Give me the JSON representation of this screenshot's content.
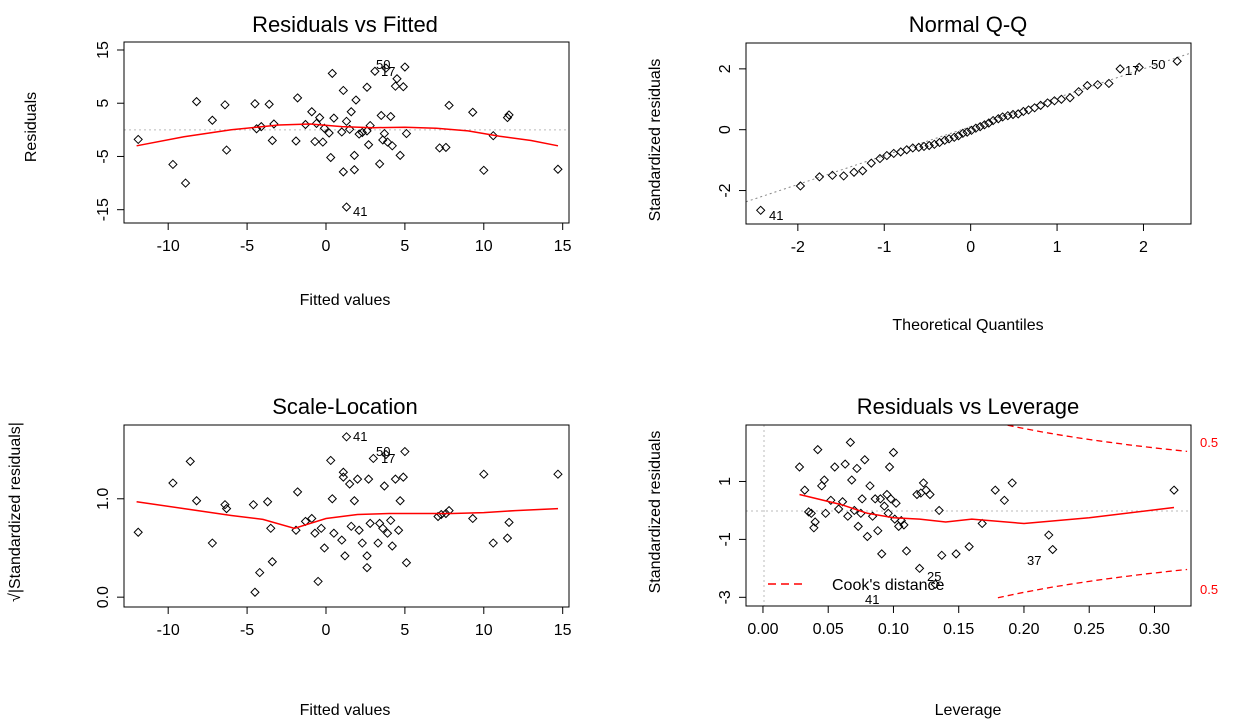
{
  "chart_data": [
    {
      "type": "scatter",
      "title": "Residuals vs Fitted",
      "xlabel": "Fitted values",
      "ylabel": "Residuals",
      "xlim": [
        -12.8,
        15.4
      ],
      "ylim": [
        -17.5,
        16.5
      ],
      "x_ticks": [
        "-10",
        "-5",
        "0",
        "5",
        "10",
        "15"
      ],
      "y_ticks": [
        "-15",
        "-5",
        "5",
        "15"
      ],
      "reference_line": 0,
      "smooth_color": "#ff0000",
      "labels": [
        "50",
        "17",
        "41"
      ],
      "points": [
        [
          -11.9,
          -1.8
        ],
        [
          -9.7,
          -6.5
        ],
        [
          -8.9,
          -10
        ],
        [
          -8.2,
          5.3
        ],
        [
          -7.2,
          1.8
        ],
        [
          -6.4,
          4.7
        ],
        [
          -6.3,
          -3.8
        ],
        [
          -4.5,
          4.9
        ],
        [
          -4.4,
          0.2
        ],
        [
          -4.1,
          0.6
        ],
        [
          -3.6,
          4.8
        ],
        [
          -3.4,
          -2
        ],
        [
          -3.3,
          1.1
        ],
        [
          -1.9,
          -2.1
        ],
        [
          -1.8,
          6
        ],
        [
          -1.3,
          1
        ],
        [
          -0.9,
          3.4
        ],
        [
          -0.7,
          -2.2
        ],
        [
          -0.6,
          1.2
        ],
        [
          -0.4,
          2.3
        ],
        [
          -0.2,
          -2.3
        ],
        [
          -0.1,
          0.3
        ],
        [
          0.2,
          -0.6
        ],
        [
          0.3,
          -5.2
        ],
        [
          0.4,
          10.6
        ],
        [
          0.5,
          2.2
        ],
        [
          1,
          -0.4
        ],
        [
          1.1,
          -7.9
        ],
        [
          1.1,
          7.4
        ],
        [
          1.3,
          1.6
        ],
        [
          1.3,
          -14.5
        ],
        [
          1.5,
          0.1
        ],
        [
          1.6,
          3.4
        ],
        [
          1.8,
          -7.5
        ],
        [
          1.8,
          -4.8
        ],
        [
          1.9,
          5.6
        ],
        [
          2.1,
          -0.8
        ],
        [
          2.3,
          -0.5
        ],
        [
          2.6,
          -0.2
        ],
        [
          2.6,
          8
        ],
        [
          2.7,
          -2.8
        ],
        [
          2.8,
          0.8
        ],
        [
          3.1,
          11
        ],
        [
          3.4,
          -6.4
        ],
        [
          3.5,
          2.7
        ],
        [
          3.6,
          -1.9
        ],
        [
          3.7,
          -0.7
        ],
        [
          3.8,
          11.6
        ],
        [
          3.9,
          -2.3
        ],
        [
          4.1,
          2.5
        ],
        [
          4.2,
          -3
        ],
        [
          4.4,
          8.2
        ],
        [
          4.5,
          9.6
        ],
        [
          4.7,
          -4.8
        ],
        [
          4.9,
          8.1
        ],
        [
          5,
          11.8
        ],
        [
          5.1,
          -0.7
        ],
        [
          7.2,
          -3.4
        ],
        [
          7.6,
          -3.3
        ],
        [
          7.8,
          4.6
        ],
        [
          9.3,
          3.3
        ],
        [
          10,
          -7.6
        ],
        [
          10.6,
          -1.1
        ],
        [
          11.5,
          2.3
        ],
        [
          11.6,
          2.8
        ],
        [
          14.7,
          -7.4
        ]
      ],
      "smooth": [
        [
          -12,
          -3
        ],
        [
          -9,
          -1.3
        ],
        [
          -6,
          0
        ],
        [
          -3,
          0.9
        ],
        [
          -1,
          1.1
        ],
        [
          1,
          0.6
        ],
        [
          3,
          0.4
        ],
        [
          5,
          0.5
        ],
        [
          7,
          0.3
        ],
        [
          9,
          -0.2
        ],
        [
          11,
          -1.2
        ],
        [
          13,
          -2
        ],
        [
          14.7,
          -3
        ]
      ]
    },
    {
      "type": "scatter",
      "title": "Normal Q-Q",
      "xlabel": "Theoretical Quantiles",
      "ylabel": "Standardized residuals",
      "xlim": [
        -2.6,
        2.55
      ],
      "ylim": [
        -3.1,
        2.85
      ],
      "x_ticks": [
        "-2",
        "-1",
        "0",
        "1",
        "2"
      ],
      "y_ticks": [
        "-2",
        "0",
        "2"
      ],
      "reference_line": [
        0.1,
        0.95
      ],
      "labels": [
        "41",
        "17",
        "50"
      ],
      "points": [
        [
          -2.43,
          -2.65
        ],
        [
          -1.97,
          -1.85
        ],
        [
          -1.75,
          -1.55
        ],
        [
          -1.6,
          -1.5
        ],
        [
          -1.47,
          -1.52
        ],
        [
          -1.35,
          -1.4
        ],
        [
          -1.25,
          -1.35
        ],
        [
          -1.15,
          -1.1
        ],
        [
          -1.05,
          -0.95
        ],
        [
          -0.97,
          -0.85
        ],
        [
          -0.89,
          -0.78
        ],
        [
          -0.81,
          -0.73
        ],
        [
          -0.74,
          -0.66
        ],
        [
          -0.67,
          -0.6
        ],
        [
          -0.6,
          -0.58
        ],
        [
          -0.54,
          -0.55
        ],
        [
          -0.48,
          -0.52
        ],
        [
          -0.42,
          -0.48
        ],
        [
          -0.36,
          -0.42
        ],
        [
          -0.3,
          -0.35
        ],
        [
          -0.25,
          -0.3
        ],
        [
          -0.19,
          -0.25
        ],
        [
          -0.14,
          -0.2
        ],
        [
          -0.09,
          -0.12
        ],
        [
          -0.04,
          -0.08
        ],
        [
          0.01,
          -0.02
        ],
        [
          0.06,
          0.05
        ],
        [
          0.11,
          0.1
        ],
        [
          0.16,
          0.16
        ],
        [
          0.21,
          0.22
        ],
        [
          0.26,
          0.3
        ],
        [
          0.32,
          0.36
        ],
        [
          0.37,
          0.42
        ],
        [
          0.43,
          0.46
        ],
        [
          0.49,
          0.5
        ],
        [
          0.55,
          0.52
        ],
        [
          0.61,
          0.6
        ],
        [
          0.67,
          0.65
        ],
        [
          0.74,
          0.72
        ],
        [
          0.81,
          0.8
        ],
        [
          0.89,
          0.88
        ],
        [
          0.97,
          0.95
        ],
        [
          1.05,
          1.0
        ],
        [
          1.15,
          1.05
        ],
        [
          1.25,
          1.25
        ],
        [
          1.35,
          1.45
        ],
        [
          1.47,
          1.48
        ],
        [
          1.6,
          1.52
        ],
        [
          1.73,
          2.0
        ],
        [
          1.95,
          2.05
        ],
        [
          2.39,
          2.25
        ]
      ]
    },
    {
      "type": "scatter",
      "title": "Scale-Location",
      "xlabel": "Fitted values",
      "ylabel": "√|Standardized residuals|",
      "xlim": [
        -12.8,
        15.4
      ],
      "ylim": [
        -0.1,
        1.75
      ],
      "x_ticks": [
        "-10",
        "-5",
        "0",
        "5",
        "10",
        "15"
      ],
      "y_ticks": [
        "0.0",
        "1.0"
      ],
      "smooth_color": "#ff0000",
      "labels": [
        "41",
        "50",
        "17"
      ],
      "points": [
        [
          -11.9,
          0.66
        ],
        [
          -9.7,
          1.16
        ],
        [
          -8.6,
          1.38
        ],
        [
          -8.2,
          0.98
        ],
        [
          -7.2,
          0.55
        ],
        [
          -6.4,
          0.94
        ],
        [
          -6.3,
          0.9
        ],
        [
          -4.6,
          0.94
        ],
        [
          -4.5,
          0.05
        ],
        [
          -4.2,
          0.25
        ],
        [
          -3.7,
          0.97
        ],
        [
          -3.5,
          0.7
        ],
        [
          -3.4,
          0.36
        ],
        [
          -1.9,
          0.68
        ],
        [
          -1.8,
          1.07
        ],
        [
          -1.3,
          0.77
        ],
        [
          -0.9,
          0.8
        ],
        [
          -0.7,
          0.65
        ],
        [
          -0.5,
          0.16
        ],
        [
          -0.3,
          0.7
        ],
        [
          -0.1,
          0.5
        ],
        [
          0.3,
          1.39
        ],
        [
          0.4,
          1.0
        ],
        [
          0.5,
          0.65
        ],
        [
          1.0,
          0.58
        ],
        [
          1.1,
          1.22
        ],
        [
          1.1,
          1.27
        ],
        [
          1.2,
          0.42
        ],
        [
          1.3,
          1.63
        ],
        [
          1.5,
          1.15
        ],
        [
          1.6,
          0.72
        ],
        [
          1.8,
          0.98
        ],
        [
          2.0,
          1.2
        ],
        [
          2.1,
          0.68
        ],
        [
          2.3,
          0.55
        ],
        [
          2.6,
          0.3
        ],
        [
          2.6,
          0.42
        ],
        [
          2.7,
          1.2
        ],
        [
          2.8,
          0.75
        ],
        [
          3.0,
          1.41
        ],
        [
          3.3,
          0.55
        ],
        [
          3.4,
          0.75
        ],
        [
          3.6,
          0.7
        ],
        [
          3.7,
          1.13
        ],
        [
          3.8,
          1.45
        ],
        [
          3.9,
          0.65
        ],
        [
          4.1,
          0.78
        ],
        [
          4.2,
          0.52
        ],
        [
          4.4,
          1.2
        ],
        [
          4.6,
          0.68
        ],
        [
          4.7,
          0.98
        ],
        [
          4.9,
          1.22
        ],
        [
          5.0,
          1.48
        ],
        [
          5.1,
          0.35
        ],
        [
          7.1,
          0.82
        ],
        [
          7.3,
          0.84
        ],
        [
          7.6,
          0.85
        ],
        [
          7.8,
          0.88
        ],
        [
          9.3,
          0.8
        ],
        [
          10.0,
          1.25
        ],
        [
          10.6,
          0.55
        ],
        [
          11.5,
          0.6
        ],
        [
          11.6,
          0.76
        ],
        [
          14.7,
          1.25
        ]
      ],
      "smooth": [
        [
          -12,
          0.97
        ],
        [
          -9,
          0.9
        ],
        [
          -6,
          0.83
        ],
        [
          -4,
          0.79
        ],
        [
          -2,
          0.7
        ],
        [
          0,
          0.8
        ],
        [
          2,
          0.84
        ],
        [
          4,
          0.85
        ],
        [
          6,
          0.85
        ],
        [
          8,
          0.85
        ],
        [
          10,
          0.86
        ],
        [
          12,
          0.88
        ],
        [
          14.7,
          0.9
        ]
      ]
    },
    {
      "type": "scatter",
      "title": "Residuals vs Leverage",
      "xlabel": "Leverage",
      "ylabel": "Standardized residuals",
      "xlim": [
        -0.013,
        0.328
      ],
      "ylim": [
        -3.3,
        2.95
      ],
      "x_ticks": [
        "0.00",
        "0.05",
        "0.10",
        "0.15",
        "0.20",
        "0.25",
        "0.30"
      ],
      "y_ticks": [
        "-3",
        "-1",
        "1"
      ],
      "smooth_color": "#ff0000",
      "labels": [
        "37",
        "25",
        "41"
      ],
      "legend": "Cook's distance",
      "contour_labels": [
        "0.5",
        "0.5"
      ],
      "points": [
        [
          0.028,
          1.5
        ],
        [
          0.032,
          0.7
        ],
        [
          0.035,
          -0.05
        ],
        [
          0.037,
          -0.1
        ],
        [
          0.039,
          -0.6
        ],
        [
          0.04,
          -0.4
        ],
        [
          0.042,
          2.1
        ],
        [
          0.045,
          0.85
        ],
        [
          0.047,
          1.05
        ],
        [
          0.048,
          -0.1
        ],
        [
          0.052,
          0.35
        ],
        [
          0.055,
          1.5
        ],
        [
          0.058,
          0.05
        ],
        [
          0.061,
          0.3
        ],
        [
          0.063,
          1.6
        ],
        [
          0.065,
          -0.2
        ],
        [
          0.067,
          2.35
        ],
        [
          0.068,
          1.05
        ],
        [
          0.07,
          0.0
        ],
        [
          0.072,
          1.45
        ],
        [
          0.073,
          -0.55
        ],
        [
          0.075,
          -0.1
        ],
        [
          0.076,
          0.4
        ],
        [
          0.078,
          1.75
        ],
        [
          0.08,
          -0.9
        ],
        [
          0.082,
          0.85
        ],
        [
          0.084,
          -0.2
        ],
        [
          0.086,
          0.4
        ],
        [
          0.088,
          -0.7
        ],
        [
          0.09,
          0.4
        ],
        [
          0.091,
          -1.5
        ],
        [
          0.093,
          0.15
        ],
        [
          0.095,
          0.55
        ],
        [
          0.096,
          -0.1
        ],
        [
          0.097,
          1.5
        ],
        [
          0.098,
          0.4
        ],
        [
          0.1,
          2.0
        ],
        [
          0.101,
          -0.3
        ],
        [
          0.102,
          0.25
        ],
        [
          0.104,
          -0.55
        ],
        [
          0.106,
          -0.35
        ],
        [
          0.108,
          -0.5
        ],
        [
          0.11,
          -1.4
        ],
        [
          0.118,
          0.55
        ],
        [
          0.12,
          -2.0
        ],
        [
          0.121,
          0.6
        ],
        [
          0.123,
          0.95
        ],
        [
          0.125,
          0.7
        ],
        [
          0.128,
          0.55
        ],
        [
          0.132,
          -2.55
        ],
        [
          0.135,
          0.0
        ],
        [
          0.137,
          -1.55
        ],
        [
          0.148,
          -1.5
        ],
        [
          0.158,
          -1.25
        ],
        [
          0.168,
          -0.45
        ],
        [
          0.178,
          0.7
        ],
        [
          0.185,
          0.35
        ],
        [
          0.191,
          0.95
        ],
        [
          0.219,
          -0.85
        ],
        [
          0.222,
          -1.35
        ],
        [
          0.315,
          0.7
        ]
      ],
      "smooth": [
        [
          0.028,
          0.55
        ],
        [
          0.06,
          0.2
        ],
        [
          0.08,
          -0.1
        ],
        [
          0.1,
          -0.25
        ],
        [
          0.12,
          -0.3
        ],
        [
          0.14,
          -0.4
        ],
        [
          0.16,
          -0.3
        ],
        [
          0.2,
          -0.45
        ],
        [
          0.25,
          -0.25
        ],
        [
          0.315,
          0.1
        ]
      ]
    }
  ]
}
